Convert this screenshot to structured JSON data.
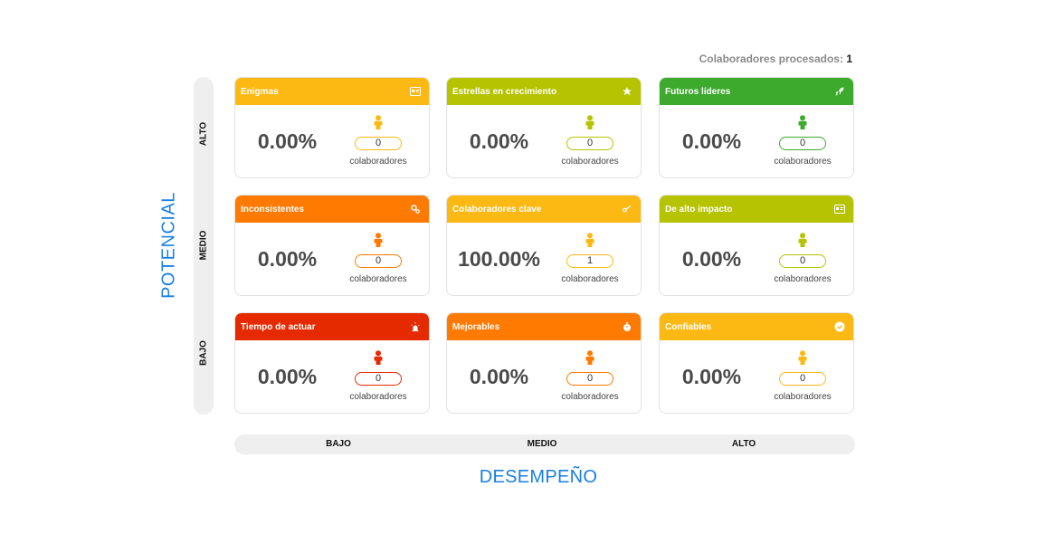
{
  "processed": {
    "label": "Colaboradores procesados:",
    "count": "1"
  },
  "y_axis": {
    "title": "POTENCIAL",
    "levels": [
      "ALTO",
      "MEDIO",
      "BAJO"
    ]
  },
  "x_axis": {
    "title": "DESEMPEÑO",
    "levels": [
      "BAJO",
      "MEDIO",
      "ALTO"
    ]
  },
  "collab_label": "colaboradores",
  "cards": [
    {
      "title": "Enigmas",
      "color": "#FDB913",
      "icon": "id-card-icon",
      "percent": "0.00%",
      "count": "0"
    },
    {
      "title": "Estrellas en crecimiento",
      "color": "#B5C300",
      "icon": "star-icon",
      "percent": "0.00%",
      "count": "0"
    },
    {
      "title": "Futuros líderes",
      "color": "#3DAA2E",
      "icon": "rocket-icon",
      "percent": "0.00%",
      "count": "0"
    },
    {
      "title": "Inconsistentes",
      "color": "#FF7A00",
      "icon": "gears-icon",
      "percent": "0.00%",
      "count": "0"
    },
    {
      "title": "Colaboradores clave",
      "color": "#FDB913",
      "icon": "key-icon",
      "percent": "100.00%",
      "count": "1"
    },
    {
      "title": "De alto impacto",
      "color": "#B5C300",
      "icon": "id-card-icon",
      "percent": "0.00%",
      "count": "0"
    },
    {
      "title": "Tiempo de actuar",
      "color": "#E62A00",
      "icon": "alarm-icon",
      "percent": "0.00%",
      "count": "0"
    },
    {
      "title": "Mejorables",
      "color": "#FF7A00",
      "icon": "stopwatch-icon",
      "percent": "0.00%",
      "count": "0"
    },
    {
      "title": "Confiables",
      "color": "#FDB913",
      "icon": "check-circle-icon",
      "percent": "0.00%",
      "count": "0"
    }
  ]
}
